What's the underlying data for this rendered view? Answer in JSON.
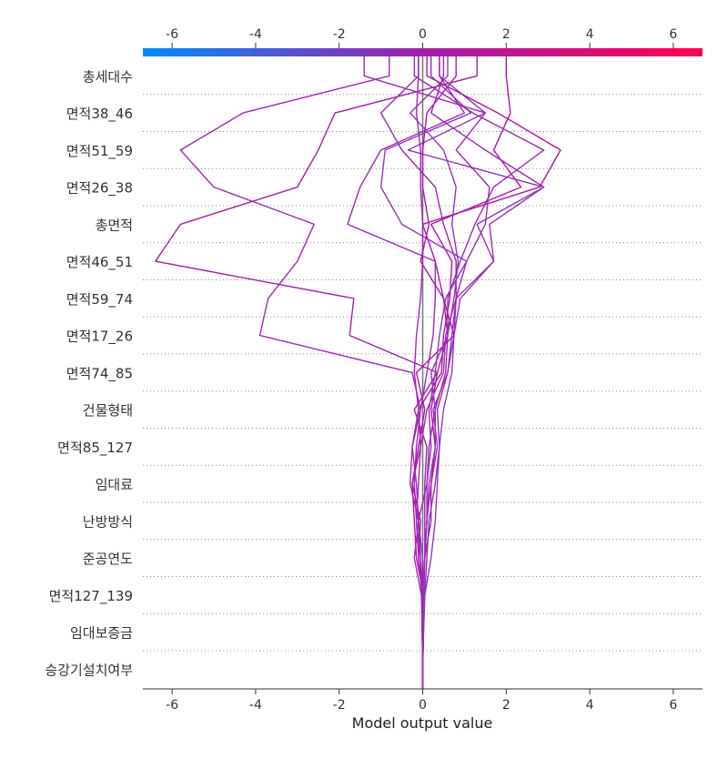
{
  "chart_data": {
    "type": "line",
    "chart_kind": "shap-decision-plot",
    "title": "",
    "xlabel": "Model output value",
    "ylabel": "",
    "xlim": [
      -6.7,
      6.7
    ],
    "x_ticks": [
      -6,
      -4,
      -2,
      0,
      2,
      4,
      6
    ],
    "x_tick_labels": [
      "-6",
      "-4",
      "-2",
      "0",
      "2",
      "4",
      "6"
    ],
    "base_value": 0,
    "colorbar": {
      "min_color": "#008bfb",
      "mid_color": "#a020a8",
      "max_color": "#ff0052"
    },
    "grid": "dotted horizontal",
    "features": [
      "승강기설치여부",
      "임대보증금",
      "면적127_139",
      "준공연도",
      "난방방식",
      "임대료",
      "면적85_127",
      "건물형태",
      "면적74_85",
      "면적17_26",
      "면적59_74",
      "면적46_51",
      "총면적",
      "면적26_38",
      "면적51_59",
      "면적38_46",
      "총세대수"
    ],
    "series": [
      {
        "color": "#b014a8",
        "values": [
          0,
          0.01,
          0.02,
          -0.15,
          -0.2,
          -0.25,
          -0.05,
          -0.1,
          0.45,
          0.5,
          0.65,
          0.7,
          0.2,
          2.35,
          1.7,
          2.1,
          2.0
        ]
      },
      {
        "color": "#9d2ab6",
        "values": [
          0,
          0.02,
          0.05,
          0.1,
          0.15,
          0.3,
          0.4,
          0.35,
          0.6,
          0.7,
          0.8,
          1.7,
          1.6,
          2.9,
          1.5,
          0.2,
          0.5
        ]
      },
      {
        "color": "#9d2ab6",
        "values": [
          0,
          0.0,
          -0.02,
          -0.05,
          -0.1,
          -0.15,
          -0.25,
          -0.1,
          -0.2,
          -0.15,
          -0.05,
          0.0,
          0.0,
          -0.05,
          -0.05,
          -0.15,
          -0.1
        ]
      },
      {
        "color": "#8e36bf",
        "values": [
          0,
          0.02,
          0.05,
          0.2,
          0.3,
          0.35,
          0.4,
          0.5,
          0.7,
          0.75,
          0.9,
          1.7,
          1.3,
          2.9,
          -0.35,
          1.5,
          0.4
        ]
      },
      {
        "color": "#9d2ab6",
        "values": [
          0,
          -0.01,
          -0.02,
          0.0,
          -0.1,
          0.1,
          0.15,
          0.3,
          0.55,
          0.6,
          0.6,
          0.9,
          1.25,
          1.7,
          2.9,
          1.2,
          -0.2
        ]
      },
      {
        "color": "#a71ea8",
        "values": [
          0,
          0.0,
          0.0,
          0.05,
          0.05,
          0.05,
          0.1,
          -0.2,
          0.35,
          -1.75,
          -1.65,
          -6.4,
          -5.8,
          -3.0,
          -2.5,
          -2.1,
          1.3
        ]
      },
      {
        "color": "#9d2ab6",
        "values": [
          0,
          -0.01,
          -0.03,
          -0.2,
          -0.1,
          -0.3,
          -0.25,
          -0.05,
          -0.25,
          -3.9,
          -3.7,
          -3.0,
          -2.6,
          -5.0,
          -5.8,
          -4.3,
          -0.8
        ]
      },
      {
        "color": "#9d2ab6",
        "values": [
          0,
          0.01,
          0.02,
          0.05,
          0.2,
          0.2,
          0.35,
          0.25,
          0.6,
          0.75,
          0.8,
          0.8,
          0.5,
          0.3,
          -0.5,
          -1.0,
          -0.1
        ]
      },
      {
        "color": "#b014a8",
        "values": [
          0,
          -0.01,
          -0.02,
          0.05,
          0.1,
          0.2,
          0.3,
          0.2,
          0.35,
          0.6,
          0.5,
          0.3,
          0.0,
          2.8,
          3.3,
          1.8,
          0.1
        ]
      },
      {
        "color": "#8e36bf",
        "values": [
          0,
          0.01,
          0.01,
          0.05,
          0.1,
          0.1,
          0.2,
          0.15,
          0.3,
          0.4,
          0.55,
          1.05,
          -0.5,
          -1.0,
          -0.9,
          1.15,
          0.2
        ]
      },
      {
        "color": "#9d2ab6",
        "values": [
          0,
          0.0,
          -0.01,
          -0.1,
          -0.15,
          -0.2,
          -0.15,
          -0.05,
          0.1,
          0.25,
          0.3,
          0.3,
          -1.8,
          -1.5,
          -1.0,
          1.0,
          0.4
        ]
      },
      {
        "color": "#8e36bf",
        "values": [
          0,
          0.02,
          0.03,
          0.05,
          0.1,
          0.15,
          0.3,
          0.3,
          0.2,
          0.6,
          0.75,
          0.85,
          0.7,
          0.8,
          0.5,
          -0.3,
          0.6
        ]
      },
      {
        "color": "#b014a8",
        "values": [
          0,
          0.0,
          -0.01,
          -0.1,
          -0.05,
          -0.25,
          -0.1,
          0.05,
          -0.15,
          0.75,
          0.5,
          -0.05,
          0.15,
          0.0,
          0.0,
          0.1,
          0.8
        ]
      },
      {
        "color": "#9d2ab6",
        "values": [
          0,
          -0.01,
          -0.02,
          -0.05,
          -0.15,
          -0.1,
          -0.05,
          0.1,
          0.5,
          0.55,
          0.8,
          1.05,
          1.5,
          1.6,
          0.8,
          1.5,
          -1.4
        ]
      }
    ]
  }
}
